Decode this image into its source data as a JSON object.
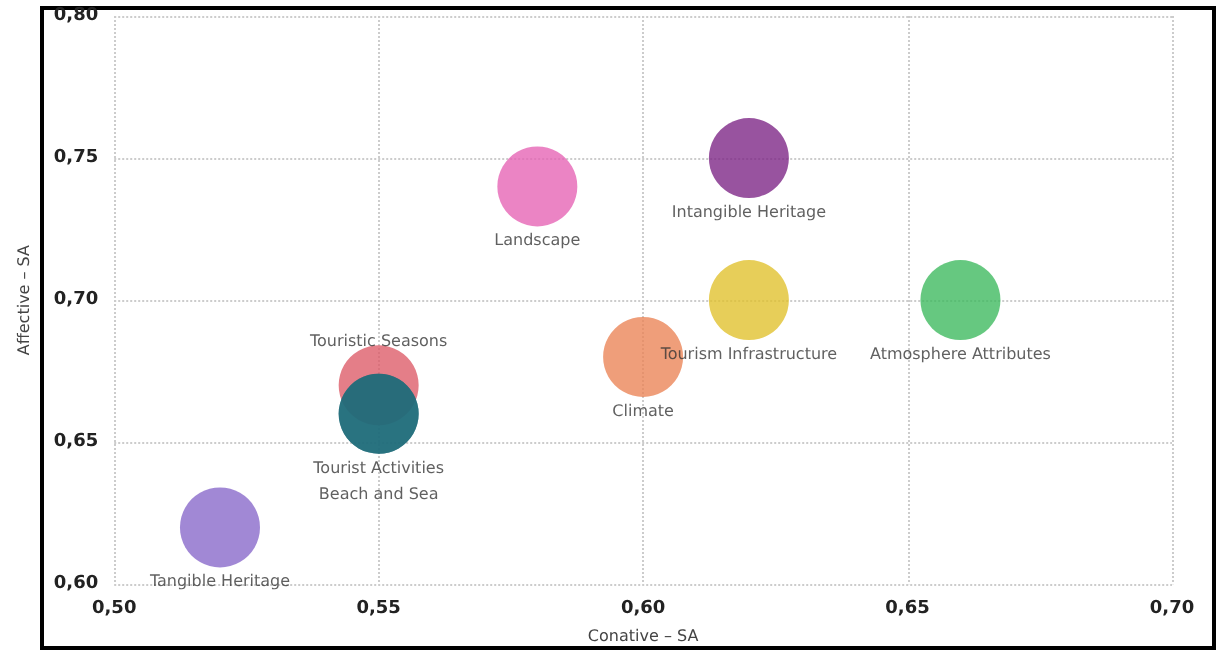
{
  "chart_data": {
    "type": "bubble",
    "xlabel": "Conative – SA",
    "ylabel": "Affective – SA",
    "xlim": [
      0.5,
      0.7
    ],
    "xticks": [
      {
        "value": 0.5,
        "label": "0,50"
      },
      {
        "value": 0.55,
        "label": "0,55"
      },
      {
        "value": 0.6,
        "label": "0,60"
      },
      {
        "value": 0.65,
        "label": "0,65"
      },
      {
        "value": 0.7,
        "label": "0,70"
      }
    ],
    "ylim": [
      0.6,
      0.8
    ],
    "yticks": [
      {
        "value": 0.6,
        "label": "0,60"
      },
      {
        "value": 0.65,
        "label": "0,65"
      },
      {
        "value": 0.7,
        "label": "0,70"
      },
      {
        "value": 0.75,
        "label": "0,75"
      },
      {
        "value": 0.8,
        "label": "0,80"
      }
    ],
    "grid": true,
    "legend": false,
    "series": [
      {
        "name": "Intangible Heritage",
        "color": "#7b2384",
        "x": [
          0.62
        ],
        "values": [
          0.75
        ],
        "sizes": [
          1
        ]
      },
      {
        "name": "Landscape",
        "color": "#e561b3",
        "x": [
          0.58
        ],
        "values": [
          0.74
        ],
        "sizes": [
          1
        ]
      },
      {
        "name": "Tourism Infrastructure",
        "color": "#e0c02a",
        "x": [
          0.62
        ],
        "values": [
          0.7
        ],
        "sizes": [
          1
        ]
      },
      {
        "name": "Atmosphere Attributes",
        "color": "#3bb85c",
        "x": [
          0.66
        ],
        "values": [
          0.7
        ],
        "sizes": [
          1
        ]
      },
      {
        "name": "Climate",
        "color": "#ea8355",
        "x": [
          0.6
        ],
        "values": [
          0.68
        ],
        "sizes": [
          1
        ]
      },
      {
        "name": "Touristic Seasons",
        "color": "#dc5a66",
        "x": [
          0.55
        ],
        "values": [
          0.67
        ],
        "sizes": [
          1
        ]
      },
      {
        "name": "Tourist Activities",
        "color": "#1f6b7a",
        "x": [
          0.55
        ],
        "values": [
          0.66
        ],
        "sizes": [
          1
        ]
      },
      {
        "name": "Beach and Sea",
        "color": "#1f6b7a",
        "x": [
          0.55
        ],
        "values": [
          0.66
        ],
        "sizes": [
          1
        ]
      },
      {
        "name": "Tangible Heritage",
        "color": "#8766c9",
        "x": [
          0.52
        ],
        "values": [
          0.62
        ],
        "sizes": [
          1
        ]
      }
    ]
  }
}
